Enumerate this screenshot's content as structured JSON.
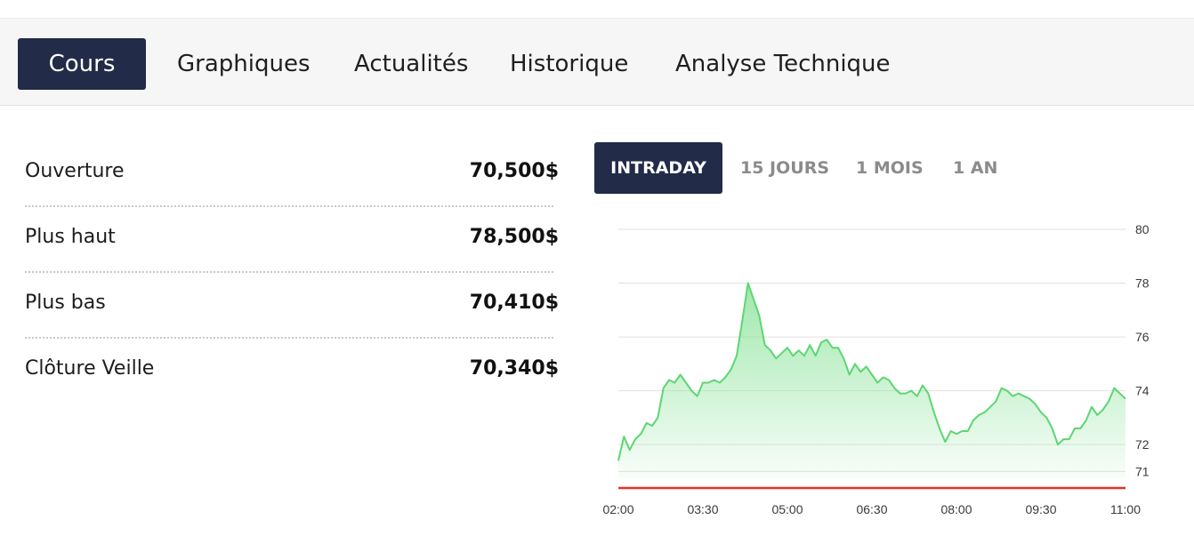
{
  "tabs": [
    {
      "label": "Cours",
      "active": true
    },
    {
      "label": "Graphiques",
      "active": false
    },
    {
      "label": "Actualités",
      "active": false
    },
    {
      "label": "Historique",
      "active": false
    },
    {
      "label": "Analyse Technique",
      "active": false
    }
  ],
  "stats": [
    {
      "label": "Ouverture",
      "value": "70,500$"
    },
    {
      "label": "Plus haut",
      "value": "78,500$"
    },
    {
      "label": "Plus bas",
      "value": "70,410$"
    },
    {
      "label": "Clôture Veille",
      "value": "70,340$"
    }
  ],
  "periods": [
    {
      "label": "INTRADAY",
      "active": true
    },
    {
      "label": "15 JOURS",
      "active": false
    },
    {
      "label": "1 MOIS",
      "active": false
    },
    {
      "label": "1 AN",
      "active": false
    }
  ],
  "colors": {
    "accent": "#222b48",
    "line": "#5cd673",
    "area": "#8ee49d",
    "reference": "#e0342c"
  },
  "chart_data": {
    "type": "area",
    "x_ticks": [
      "02:00",
      "03:30",
      "05:00",
      "06:30",
      "08:00",
      "09:30",
      "11:00"
    ],
    "y_ticks": [
      71,
      72,
      74,
      76,
      78,
      80
    ],
    "ylim": [
      70.75,
      80
    ],
    "reference_value": 70.34,
    "series": [
      {
        "x": [
          "02:00",
          "02:06",
          "02:12",
          "02:18",
          "02:24",
          "02:30",
          "02:36",
          "02:42",
          "02:48",
          "02:54",
          "03:00",
          "03:06",
          "03:12",
          "03:18",
          "03:24",
          "03:30",
          "03:36",
          "03:42",
          "03:48",
          "03:54",
          "04:00",
          "04:06",
          "04:12",
          "04:18",
          "04:24",
          "04:30",
          "04:36",
          "04:42",
          "04:48",
          "04:54",
          "05:00",
          "05:06",
          "05:12",
          "05:18",
          "05:24",
          "05:30",
          "05:36",
          "05:42",
          "05:48",
          "05:54",
          "06:00",
          "06:06",
          "06:12",
          "06:18",
          "06:24",
          "06:30",
          "06:36",
          "06:42",
          "06:48",
          "06:54",
          "07:00",
          "07:06",
          "07:12",
          "07:18",
          "07:24",
          "07:30",
          "07:36",
          "07:42",
          "07:48",
          "07:54",
          "08:00",
          "08:06",
          "08:12",
          "08:18",
          "08:24",
          "08:30",
          "08:36",
          "08:42",
          "08:48",
          "08:54",
          "09:00",
          "09:06",
          "09:12",
          "09:18",
          "09:24",
          "09:30",
          "09:36",
          "09:42",
          "09:48",
          "09:54",
          "10:00",
          "10:06",
          "10:12",
          "10:18",
          "10:24",
          "10:30",
          "10:36",
          "10:42",
          "10:48",
          "10:54",
          "11:00"
        ],
        "y": [
          71.4,
          72.3,
          71.8,
          72.2,
          72.4,
          72.8,
          72.7,
          73.0,
          74.1,
          74.4,
          74.3,
          74.6,
          74.3,
          74.0,
          73.8,
          74.3,
          74.3,
          74.4,
          74.3,
          74.5,
          74.8,
          75.3,
          76.6,
          78.0,
          77.4,
          76.8,
          75.7,
          75.5,
          75.2,
          75.4,
          75.6,
          75.3,
          75.5,
          75.3,
          75.7,
          75.3,
          75.8,
          75.9,
          75.6,
          75.6,
          75.2,
          74.6,
          75.0,
          74.7,
          74.9,
          74.6,
          74.3,
          74.5,
          74.4,
          74.1,
          73.9,
          73.9,
          74.0,
          73.8,
          74.2,
          73.9,
          73.2,
          72.6,
          72.1,
          72.5,
          72.4,
          72.5,
          72.5,
          72.9,
          73.1,
          73.2,
          73.4,
          73.6,
          74.1,
          74.0,
          73.8,
          73.9,
          73.8,
          73.7,
          73.5,
          73.2,
          73.0,
          72.6,
          72.0,
          72.2,
          72.2,
          72.6,
          72.6,
          72.9,
          73.4,
          73.1,
          73.3,
          73.6,
          74.1,
          73.9,
          73.7
        ]
      }
    ]
  }
}
